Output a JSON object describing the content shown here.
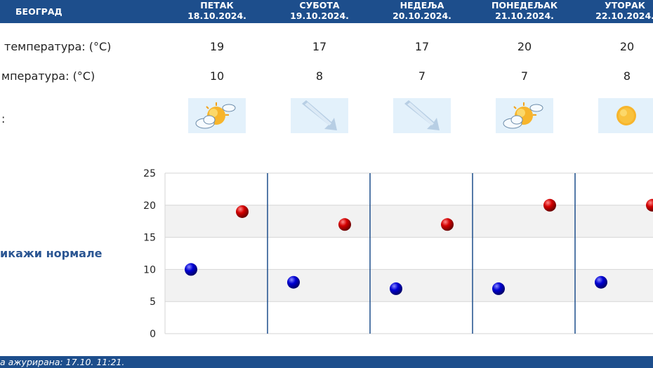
{
  "header": {
    "city": "БЕОГРАД",
    "days": [
      {
        "name": "ПЕТАК",
        "date": "18.10.2024."
      },
      {
        "name": "СУБОТА",
        "date": "19.10.2024."
      },
      {
        "name": "НЕДЕЉА",
        "date": "20.10.2024."
      },
      {
        "name": "ПОНЕДЕЉАК",
        "date": "21.10.2024."
      },
      {
        "name": "УТОРАК",
        "date": "22.10.2024."
      }
    ]
  },
  "rows": {
    "max_label": "температура: (°C)",
    "min_label": "мпература: (°C)",
    "icon_label": ":"
  },
  "max_temps": [
    "19",
    "17",
    "17",
    "20",
    "20"
  ],
  "min_temps": [
    "10",
    "8",
    "7",
    "7",
    "8"
  ],
  "icons": [
    "partly-cloudy-sun-icon",
    "rain-arrow-icon",
    "rain-arrow-icon",
    "partly-cloudy-sun-icon",
    "sun-icon"
  ],
  "normals_link": "икажи нормале",
  "footer": {
    "updated": "а ажурирана:  17.10. 11:21."
  },
  "colors": {
    "header": "#1d4e8c",
    "max_dot": "#cc0000",
    "min_dot": "#0000cc",
    "band": "#f2f2f2",
    "divider": "#1d4e8c"
  },
  "chart_data": {
    "type": "scatter",
    "categories": [
      "18.10.2024.",
      "19.10.2024.",
      "20.10.2024.",
      "21.10.2024.",
      "22.10.2024."
    ],
    "series": [
      {
        "values": [
          19,
          17,
          17,
          20,
          20
        ],
        "color": "#cc0000"
      },
      {
        "values": [
          10,
          8,
          7,
          7,
          8
        ],
        "color": "#0000cc"
      }
    ],
    "yticks": [
      "0",
      "5",
      "10",
      "15",
      "20",
      "25"
    ],
    "ylim": [
      0,
      25
    ],
    "grid": true
  }
}
